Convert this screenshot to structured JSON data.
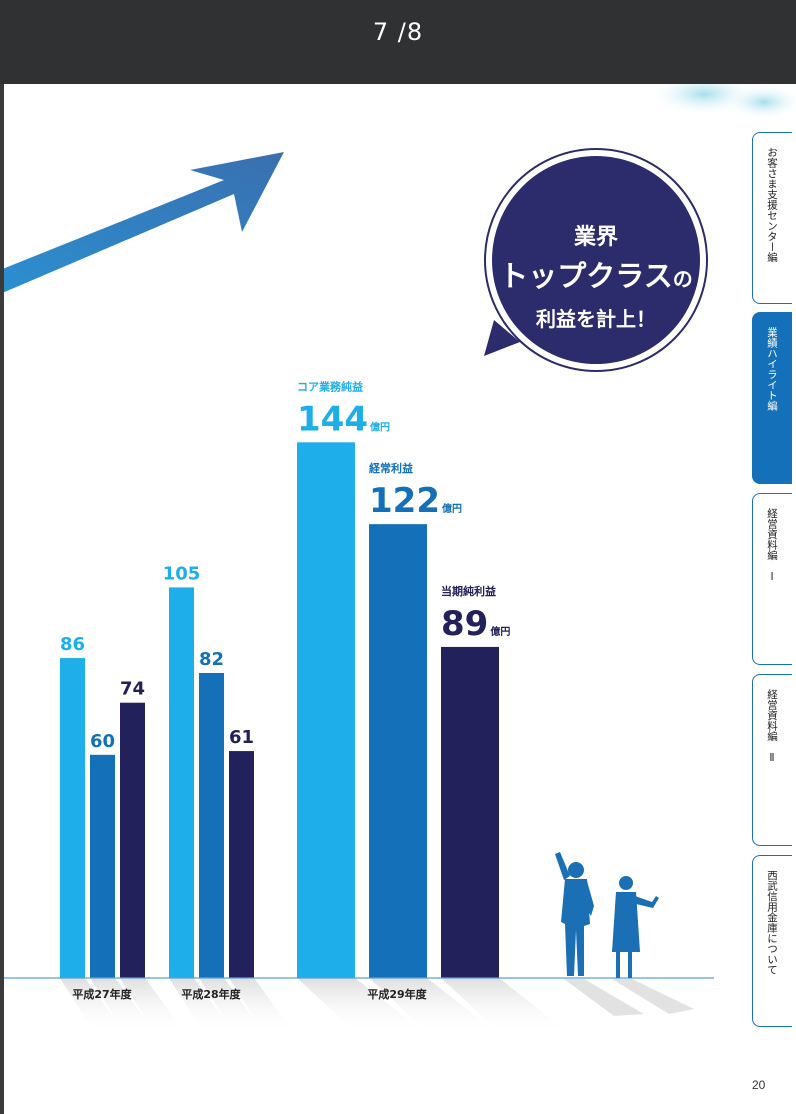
{
  "viewer": {
    "page_indicator": "7 /8"
  },
  "tabs": [
    {
      "label": "お客さま支援センター編",
      "active": false
    },
    {
      "label": "業績ハイライト編",
      "active": true
    },
    {
      "label": "経営資料編　Ⅰ",
      "active": false
    },
    {
      "label": "経営資料編　Ⅱ",
      "active": false
    },
    {
      "label": "西武信用金庫について",
      "active": false
    }
  ],
  "page_number": "20",
  "bubble": {
    "line1": "業界",
    "line2a": "トップクラス",
    "line2b": "の",
    "line3": "利益を計上！"
  },
  "colors": {
    "core": "#1eaeea",
    "ordinary": "#1470b8",
    "net": "#22215b",
    "accent": "#2c2c6c"
  },
  "chart_data": {
    "type": "bar",
    "categories": [
      "平成27年度",
      "平成28年度",
      "平成29年度"
    ],
    "series": [
      {
        "name": "コア業務純益",
        "values": [
          86,
          105,
          144
        ],
        "color": "#1eaeea"
      },
      {
        "name": "経常利益",
        "values": [
          60,
          82,
          122
        ],
        "color": "#1470b8"
      },
      {
        "name": "当期純利益",
        "values": [
          74,
          61,
          89
        ],
        "color": "#22215b"
      }
    ],
    "unit": "億円",
    "grid": false
  }
}
